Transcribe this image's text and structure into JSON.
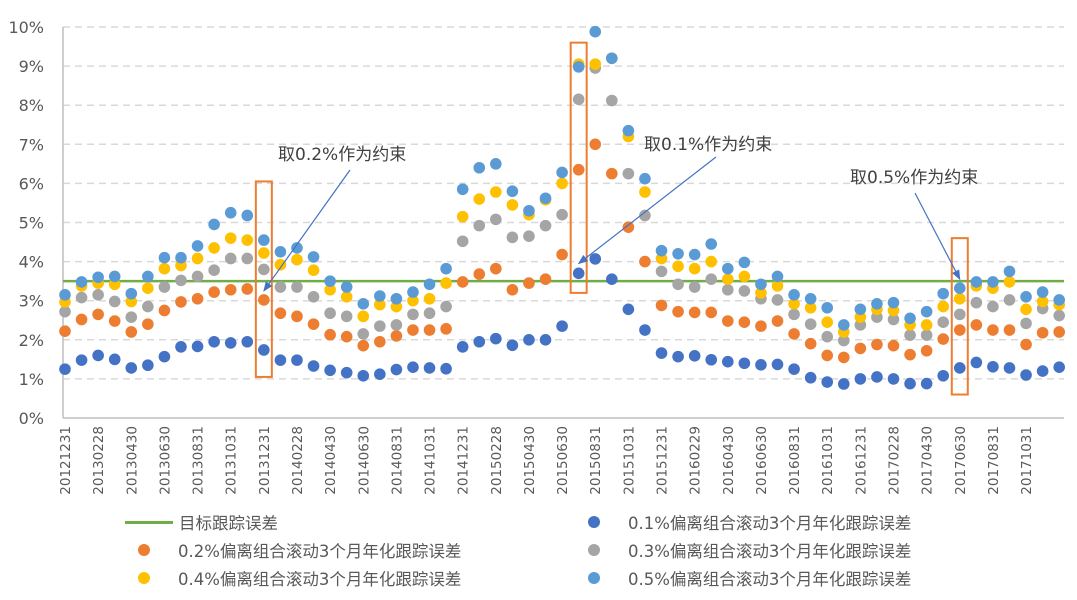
{
  "chart_data": {
    "type": "scatter",
    "title": "",
    "xlabel": "",
    "ylabel": "",
    "ylim": [
      0,
      10
    ],
    "y_unit": "%",
    "y_ticks": [
      "0%",
      "1%",
      "2%",
      "3%",
      "4%",
      "5%",
      "6%",
      "7%",
      "8%",
      "9%",
      "10%"
    ],
    "grid": "horizontal-dashed",
    "legend_position": "bottom",
    "x": [
      "20121231",
      "20130131",
      "20130228",
      "20130331",
      "20130430",
      "20130531",
      "20130630",
      "20130731",
      "20130831",
      "20130930",
      "20131031",
      "20131130",
      "20131231",
      "20140131",
      "20140228",
      "20140331",
      "20140430",
      "20140531",
      "20140630",
      "20140731",
      "20140831",
      "20140930",
      "20141031",
      "20141130",
      "20141231",
      "20150131",
      "20150228",
      "20150331",
      "20150430",
      "20150531",
      "20150630",
      "20150731",
      "20150831",
      "20150930",
      "20151031",
      "20151130",
      "20151231",
      "20160131",
      "20160229",
      "20160331",
      "20160430",
      "20160531",
      "20160630",
      "20160731",
      "20160831",
      "20160930",
      "20161031",
      "20161130",
      "20161231",
      "20170131",
      "20170228",
      "20170331",
      "20170430",
      "20170531",
      "20170630",
      "20170731",
      "20170831",
      "20170930",
      "20171031",
      "20171130",
      "20171231"
    ],
    "x_tick_labels": [
      "20121231",
      "20130228",
      "20130430",
      "20130630",
      "20130831",
      "20131031",
      "20131231",
      "20140228",
      "20140430",
      "20140630",
      "20140831",
      "20141031",
      "20141231",
      "20150228",
      "20150430",
      "20150630",
      "20150831",
      "20151031",
      "20151231",
      "20160229",
      "20160430",
      "20160630",
      "20160831",
      "20161031",
      "20161231",
      "20170228",
      "20170430",
      "20170630",
      "20170831",
      "20171031"
    ],
    "target_line": {
      "name": "目标跟踪误差",
      "value": 3.5,
      "color": "#70AD47"
    },
    "series": [
      {
        "name": "0.1%偏离组合滚动3个月年化跟踪误差",
        "color": "#4472C4",
        "values": [
          1.25,
          1.48,
          1.6,
          1.5,
          1.28,
          1.35,
          1.57,
          1.82,
          1.83,
          1.95,
          1.92,
          1.95,
          1.74,
          1.48,
          1.48,
          1.33,
          1.22,
          1.16,
          1.08,
          1.12,
          1.24,
          1.3,
          1.28,
          1.26,
          1.82,
          1.95,
          2.03,
          1.86,
          2.0,
          2.0,
          2.35,
          3.7,
          4.07,
          3.55,
          2.78,
          2.25,
          1.66,
          1.57,
          1.59,
          1.49,
          1.44,
          1.4,
          1.36,
          1.37,
          1.25,
          1.03,
          0.92,
          0.87,
          1.0,
          1.05,
          1.0,
          0.88,
          0.88,
          1.08,
          1.28,
          1.42,
          1.31,
          1.28,
          1.1,
          1.2,
          1.3
        ]
      },
      {
        "name": "0.2%偏离组合滚动3个月年化跟踪误差",
        "color": "#ED7D31",
        "values": [
          2.22,
          2.52,
          2.65,
          2.48,
          2.2,
          2.4,
          2.75,
          2.97,
          3.05,
          3.22,
          3.28,
          3.3,
          3.02,
          2.68,
          2.6,
          2.4,
          2.13,
          2.08,
          1.85,
          1.95,
          2.1,
          2.25,
          2.25,
          2.28,
          3.48,
          3.68,
          3.82,
          3.28,
          3.45,
          3.55,
          4.18,
          6.35,
          7.0,
          6.25,
          4.88,
          4.0,
          2.88,
          2.72,
          2.7,
          2.7,
          2.48,
          2.45,
          2.35,
          2.48,
          2.15,
          1.9,
          1.6,
          1.55,
          1.78,
          1.88,
          1.85,
          1.62,
          1.72,
          2.02,
          2.25,
          2.38,
          2.25,
          2.25,
          1.88,
          2.18,
          2.2
        ]
      },
      {
        "name": "0.3%偏离组合滚动3个月年化跟踪误差",
        "color": "#A5A5A5",
        "values": [
          2.72,
          3.08,
          3.15,
          2.98,
          2.58,
          2.85,
          3.35,
          3.52,
          3.62,
          3.78,
          4.08,
          4.08,
          3.8,
          3.35,
          3.35,
          3.1,
          2.68,
          2.6,
          2.15,
          2.35,
          2.38,
          2.65,
          2.68,
          2.85,
          4.52,
          4.92,
          5.08,
          4.62,
          4.65,
          4.92,
          5.2,
          8.15,
          8.95,
          8.12,
          6.25,
          5.18,
          3.75,
          3.42,
          3.35,
          3.55,
          3.28,
          3.25,
          3.05,
          3.02,
          2.65,
          2.4,
          2.08,
          1.98,
          2.38,
          2.58,
          2.52,
          2.12,
          2.12,
          2.45,
          2.65,
          2.95,
          2.85,
          3.02,
          2.42,
          2.8,
          2.62
        ]
      },
      {
        "name": "0.4%偏离组合滚动3个月年化跟踪误差",
        "color": "#FFC000",
        "values": [
          2.97,
          3.38,
          3.45,
          3.42,
          2.98,
          3.32,
          3.82,
          3.9,
          4.08,
          4.35,
          4.6,
          4.55,
          4.22,
          3.92,
          4.05,
          3.78,
          3.28,
          3.1,
          2.6,
          2.9,
          2.85,
          3.0,
          3.05,
          3.45,
          5.15,
          5.6,
          5.78,
          5.45,
          5.2,
          5.58,
          6.0,
          9.05,
          9.05,
          9.2,
          7.2,
          5.78,
          4.08,
          3.88,
          3.82,
          4.0,
          3.55,
          3.62,
          3.2,
          3.38,
          2.92,
          2.82,
          2.45,
          2.2,
          2.58,
          2.78,
          2.75,
          2.38,
          2.38,
          2.85,
          3.05,
          3.38,
          3.32,
          3.48,
          2.78,
          2.98,
          2.9
        ]
      },
      {
        "name": "0.5%偏离组合滚动3个月年化跟踪误差",
        "color": "#5B9BD5",
        "values": [
          3.15,
          3.48,
          3.6,
          3.62,
          3.18,
          3.62,
          4.1,
          4.1,
          4.4,
          4.95,
          5.25,
          5.18,
          4.55,
          4.25,
          4.35,
          4.12,
          3.5,
          3.35,
          2.92,
          3.12,
          3.05,
          3.22,
          3.42,
          3.82,
          5.85,
          6.4,
          6.5,
          5.8,
          5.3,
          5.62,
          6.28,
          8.98,
          9.88,
          9.2,
          7.35,
          6.12,
          4.28,
          4.2,
          4.18,
          4.45,
          3.82,
          3.98,
          3.42,
          3.62,
          3.15,
          3.05,
          2.82,
          2.38,
          2.78,
          2.92,
          2.95,
          2.55,
          2.72,
          3.18,
          3.32,
          3.48,
          3.48,
          3.75,
          3.1,
          3.22,
          3.02
        ]
      }
    ],
    "highlight_boxes": [
      {
        "x": "20131231",
        "y_range": [
          1.05,
          6.05
        ],
        "color": "#ED7D31"
      },
      {
        "x": "20150731",
        "y_range": [
          3.2,
          9.6
        ],
        "color": "#ED7D31"
      },
      {
        "x": "20170630",
        "y_range": [
          0.6,
          4.6
        ],
        "color": "#ED7D31"
      }
    ],
    "annotations": [
      {
        "text": "取0.2%作为约束",
        "points_to": {
          "x": "20131231",
          "y": 3.25
        },
        "text_at": {
          "x": "20140228",
          "y": 6.7
        }
      },
      {
        "text": "取0.1%作为约束",
        "points_to": {
          "x": "20150731",
          "y": 3.95
        },
        "text_at": {
          "x": "20151031",
          "y": 7.0
        }
      },
      {
        "text": "取0.5%作为约束",
        "points_to": {
          "x": "20170630",
          "y": 3.55
        },
        "text_at": {
          "x": "20161231",
          "y": 6.2
        }
      }
    ]
  },
  "legend": {
    "items": [
      {
        "label": "目标跟踪误差",
        "kind": "line",
        "color": "#70AD47"
      },
      {
        "label": "0.1%偏离组合滚动3个月年化跟踪误差",
        "kind": "dot",
        "color": "#4472C4"
      },
      {
        "label": "0.2%偏离组合滚动3个月年化跟踪误差",
        "kind": "dot",
        "color": "#ED7D31"
      },
      {
        "label": "0.3%偏离组合滚动3个月年化跟踪误差",
        "kind": "dot",
        "color": "#A5A5A5"
      },
      {
        "label": "0.4%偏离组合滚动3个月年化跟踪误差",
        "kind": "dot",
        "color": "#FFC000"
      },
      {
        "label": "0.5%偏离组合滚动3个月年化跟踪误差",
        "kind": "dot",
        "color": "#5B9BD5"
      }
    ]
  }
}
